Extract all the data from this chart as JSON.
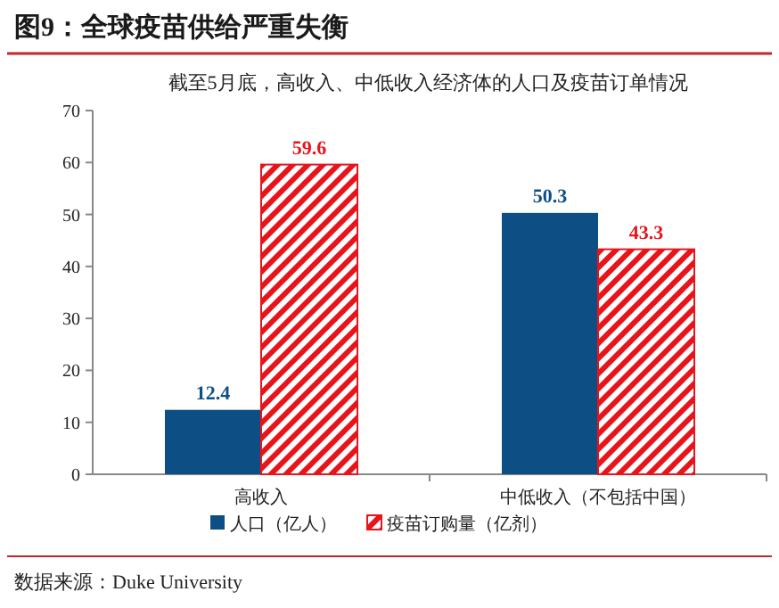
{
  "chart_data": {
    "type": "bar",
    "title": "图9：全球疫苗供给严重失衡",
    "subtitle": "截至5月底，高收入、中低收入经济体的人口及疫苗订单情况",
    "categories": [
      "高收入",
      "中低收入（不包括中国）"
    ],
    "series": [
      {
        "name": "人口（亿人）",
        "color": "#0d4f85",
        "values": [
          12.4,
          50.3
        ]
      },
      {
        "name": "疫苗订购量（亿剂）",
        "color": "#e8141b",
        "values": [
          59.6,
          43.3
        ]
      }
    ],
    "ylim": [
      0,
      70
    ],
    "yticks": [
      0,
      10,
      20,
      30,
      40,
      50,
      60,
      70
    ],
    "data_labels": true,
    "legend": "bottom",
    "annotations": [
      "数据来源：Duke University"
    ]
  }
}
